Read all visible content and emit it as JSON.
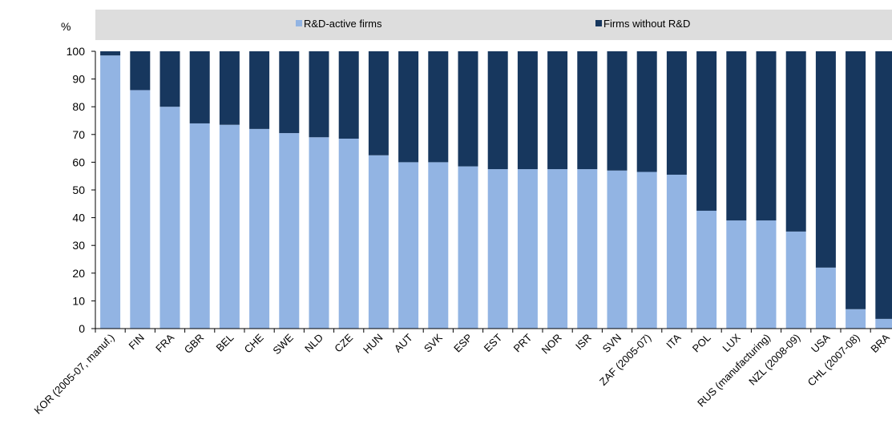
{
  "chart_data": {
    "type": "bar",
    "stacked": true,
    "unit_label": "%",
    "ylim": [
      0,
      100
    ],
    "yticks": [
      0,
      10,
      20,
      30,
      40,
      50,
      60,
      70,
      80,
      90,
      100
    ],
    "legend_position": "top",
    "categories": [
      "KOR (2005-07, manuf.)",
      "FIN",
      "FRA",
      "GBR",
      "BEL",
      "CHE",
      "SWE",
      "NLD",
      "CZE",
      "HUN",
      "AUT",
      "SVK",
      "ESP",
      "EST",
      "PRT",
      "NOR",
      "ISR",
      "SVN",
      "ZAF (2005-07)",
      "ITA",
      "POL",
      "LUX",
      "RUS (manufacturing)",
      "NZL (2008-09)",
      "USA",
      "CHL (2007-08)",
      "BRA"
    ],
    "series": [
      {
        "name": "R&D-active firms",
        "color": "#92b4e3",
        "values": [
          98.5,
          86,
          80,
          74,
          73.5,
          72,
          70.5,
          69,
          68.5,
          62.5,
          60,
          60,
          58.5,
          57.5,
          57.5,
          57.5,
          57.5,
          57,
          56.5,
          55.5,
          42.5,
          39,
          39,
          35,
          22,
          7,
          3.5
        ]
      },
      {
        "name": "Firms without R&D",
        "color": "#17375e",
        "values": [
          1.5,
          14,
          20,
          26,
          26.5,
          28,
          29.5,
          31,
          31.5,
          37.5,
          40,
          40,
          41.5,
          42.5,
          42.5,
          42.5,
          42.5,
          43,
          43.5,
          44.5,
          57.5,
          61,
          61,
          65,
          78,
          93,
          96.5
        ]
      }
    ]
  },
  "colors": {
    "legend_background": "#dddddd",
    "axis": "#000000"
  }
}
